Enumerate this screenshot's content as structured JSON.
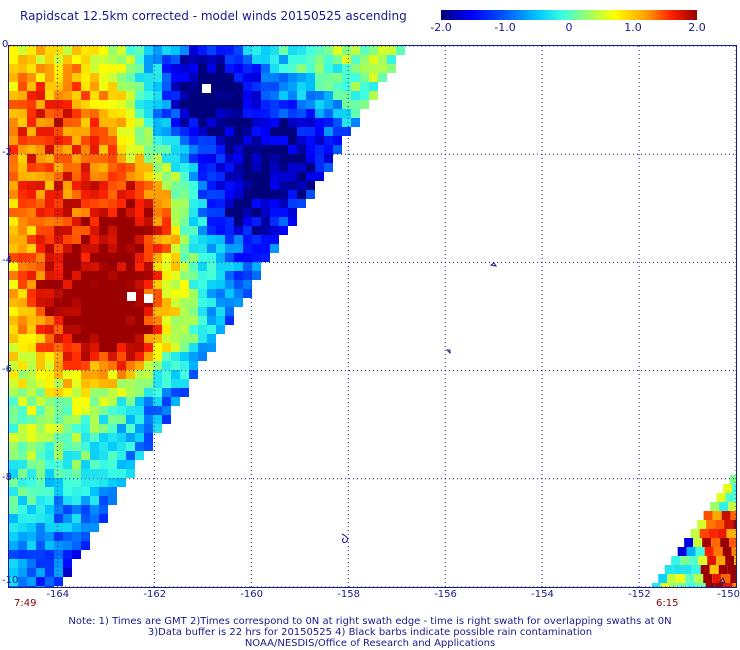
{
  "title": "Rapidscat 12.5km corrected - model winds 20150525 ascending",
  "colorbar": {
    "min": -2.0,
    "max": 2.0,
    "ticks": [
      {
        "value": -2.0,
        "label": "-2.0"
      },
      {
        "value": -1.0,
        "label": "-1.0"
      },
      {
        "value": 0.0,
        "label": "0"
      },
      {
        "value": 1.0,
        "label": "1.0"
      },
      {
        "value": 2.0,
        "label": "2.0"
      }
    ],
    "colors": [
      "#00007a",
      "#0000ff",
      "#0050ff",
      "#00c8ff",
      "#40ffe0",
      "#a0ff60",
      "#ffff00",
      "#ffa000",
      "#ff2000",
      "#9a0000"
    ]
  },
  "map": {
    "lon_range": [
      -165,
      -150
    ],
    "lat_range": [
      -10,
      0
    ],
    "lon_ticks": [
      {
        "value": -164,
        "label": "-164"
      },
      {
        "value": -162,
        "label": "-162"
      },
      {
        "value": -160,
        "label": "-160"
      },
      {
        "value": -158,
        "label": "-158"
      },
      {
        "value": -156,
        "label": "-156"
      },
      {
        "value": -154,
        "label": "-154"
      },
      {
        "value": -152,
        "label": "-152"
      },
      {
        "value": -150,
        "label": "-150"
      }
    ],
    "lat_ticks": [
      {
        "value": 0,
        "label": "0"
      },
      {
        "value": -2,
        "label": "-2"
      },
      {
        "value": -4,
        "label": "-4"
      },
      {
        "value": -6,
        "label": "-6"
      },
      {
        "value": -8,
        "label": "-8"
      },
      {
        "value": -10,
        "label": "-10"
      }
    ],
    "grid": "dotted",
    "swath_times": {
      "left": "7:49",
      "right": "6:15"
    }
  },
  "footnote": {
    "line1": "Note: 1) Times are GMT 2)Times correspond to 0N at right swath edge - time is right swath for overlapping swaths at 0N",
    "line2": "3)Data buffer is 22 hrs for 20150525 4) Black barbs indicate possible rain contamination",
    "line3": "NOAA/NESDIS/Office of Research and Applications"
  }
}
